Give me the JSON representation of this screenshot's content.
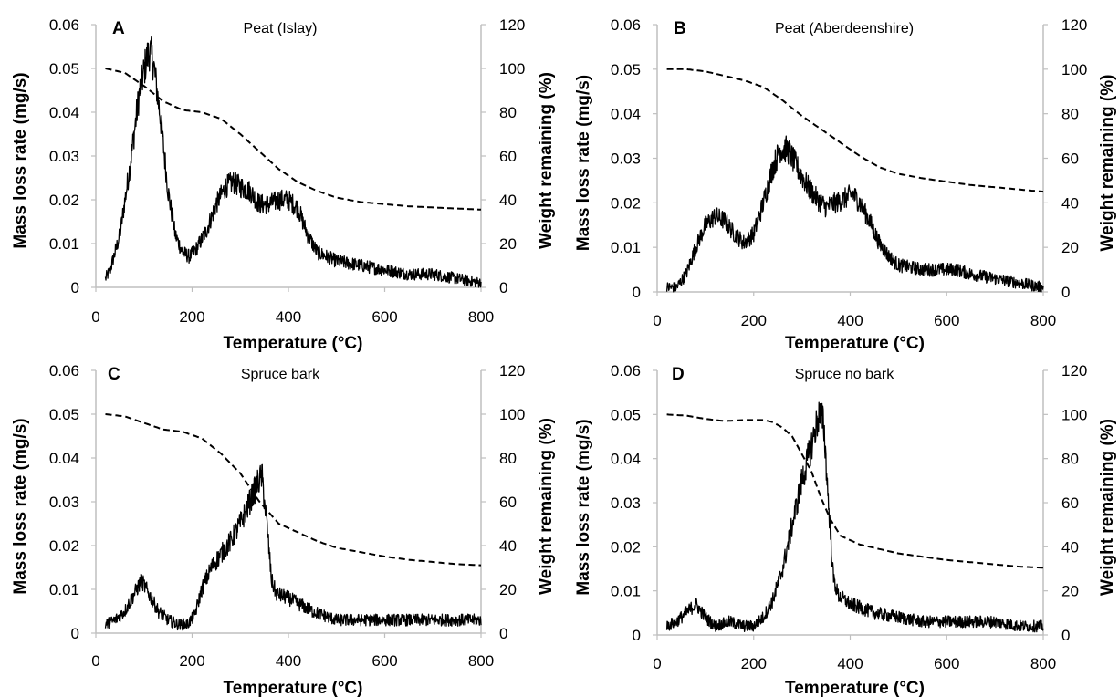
{
  "chart_data": [
    {
      "type": "line",
      "panel_label": "A",
      "title": "Peat (Islay)",
      "xlabel": "Temperature (°C)",
      "ylabel": "Mass loss rate (mg/s)",
      "y2label": "Weight remaining (%)",
      "xlim": [
        0,
        800
      ],
      "ylim": [
        0,
        0.06
      ],
      "y2lim": [
        0,
        120
      ],
      "x_ticks": [
        "0",
        "200",
        "400",
        "600",
        "800"
      ],
      "y_ticks": [
        "0",
        "0.01",
        "0.02",
        "0.03",
        "0.04",
        "0.05",
        "0.06"
      ],
      "y2_ticks": [
        "0",
        "20",
        "40",
        "60",
        "80",
        "100",
        "120"
      ],
      "grid": false,
      "series": [
        {
          "axis": "left",
          "style": "solid noisy",
          "x": [
            20,
            30,
            50,
            70,
            90,
            105,
            112,
            120,
            135,
            150,
            165,
            180,
            195,
            210,
            230,
            250,
            270,
            285,
            300,
            320,
            340,
            360,
            380,
            400,
            420,
            440,
            460,
            500,
            550,
            600,
            650,
            700,
            750,
            800
          ],
          "y": [
            0.002,
            0.004,
            0.012,
            0.027,
            0.044,
            0.052,
            0.054,
            0.051,
            0.038,
            0.022,
            0.012,
            0.008,
            0.007,
            0.009,
            0.013,
            0.019,
            0.023,
            0.024,
            0.023,
            0.022,
            0.019,
            0.019,
            0.02,
            0.02,
            0.018,
            0.012,
            0.008,
            0.006,
            0.005,
            0.004,
            0.003,
            0.003,
            0.002,
            0.001
          ]
        },
        {
          "axis": "right",
          "style": "dashed",
          "x": [
            20,
            60,
            100,
            140,
            180,
            220,
            260,
            300,
            340,
            380,
            420,
            460,
            500,
            550,
            600,
            650,
            700,
            750,
            800
          ],
          "y": [
            100,
            98,
            92,
            85,
            81,
            80,
            77,
            70,
            62,
            54,
            48,
            44,
            41,
            39,
            38,
            37,
            36.5,
            36,
            35.5
          ]
        }
      ]
    },
    {
      "type": "line",
      "panel_label": "B",
      "title": "Peat (Aberdeenshire)",
      "xlabel": "Temperature (°C)",
      "ylabel": "Mass loss rate (mg/s)",
      "y2label": "Weight remaining (%)",
      "xlim": [
        0,
        800
      ],
      "ylim": [
        0,
        0.06
      ],
      "y2lim": [
        0,
        120
      ],
      "x_ticks": [
        "0",
        "200",
        "400",
        "600",
        "800"
      ],
      "y_ticks": [
        "0",
        "0.01",
        "0.02",
        "0.03",
        "0.04",
        "0.05",
        "0.06"
      ],
      "y2_ticks": [
        "0",
        "20",
        "40",
        "60",
        "80",
        "100",
        "120"
      ],
      "grid": false,
      "series": [
        {
          "axis": "left",
          "style": "solid noisy",
          "x": [
            20,
            40,
            60,
            80,
            100,
            120,
            140,
            160,
            180,
            200,
            220,
            240,
            255,
            270,
            290,
            310,
            330,
            350,
            370,
            390,
            405,
            420,
            440,
            460,
            480,
            500,
            550,
            600,
            620,
            650,
            700,
            750,
            800
          ],
          "y": [
            0.001,
            0.001,
            0.004,
            0.01,
            0.015,
            0.017,
            0.016,
            0.013,
            0.011,
            0.013,
            0.02,
            0.028,
            0.032,
            0.032,
            0.028,
            0.024,
            0.021,
            0.019,
            0.02,
            0.021,
            0.022,
            0.02,
            0.016,
            0.011,
            0.008,
            0.006,
            0.005,
            0.005,
            0.005,
            0.004,
            0.003,
            0.002,
            0.001
          ]
        },
        {
          "axis": "right",
          "style": "dashed",
          "x": [
            20,
            60,
            100,
            140,
            180,
            220,
            260,
            300,
            340,
            380,
            420,
            460,
            500,
            550,
            600,
            650,
            700,
            750,
            800
          ],
          "y": [
            100,
            100,
            99,
            97,
            95,
            92,
            86,
            79,
            73,
            67,
            61,
            56,
            53,
            51,
            49.5,
            48,
            47,
            46,
            45
          ]
        }
      ]
    },
    {
      "type": "line",
      "panel_label": "C",
      "title": "Spruce bark",
      "xlabel": "Temperature (°C)",
      "ylabel": "Mass loss rate (mg/s)",
      "y2label": "Weight remaining (%)",
      "xlim": [
        0,
        800
      ],
      "ylim": [
        0,
        0.06
      ],
      "y2lim": [
        0,
        120
      ],
      "x_ticks": [
        "0",
        "200",
        "400",
        "600",
        "800"
      ],
      "y_ticks": [
        "0",
        "0.01",
        "0.02",
        "0.03",
        "0.04",
        "0.05",
        "0.06"
      ],
      "y2_ticks": [
        "0",
        "20",
        "40",
        "60",
        "80",
        "100",
        "120"
      ],
      "grid": false,
      "series": [
        {
          "axis": "left",
          "style": "solid noisy",
          "x": [
            20,
            40,
            60,
            80,
            95,
            110,
            130,
            150,
            170,
            190,
            205,
            220,
            240,
            260,
            280,
            300,
            320,
            335,
            345,
            355,
            365,
            375,
            400,
            450,
            500,
            550,
            600,
            650,
            700,
            750,
            800
          ],
          "y": [
            0.002,
            0.003,
            0.005,
            0.009,
            0.012,
            0.009,
            0.005,
            0.003,
            0.002,
            0.002,
            0.004,
            0.01,
            0.015,
            0.018,
            0.021,
            0.025,
            0.03,
            0.034,
            0.036,
            0.025,
            0.012,
            0.009,
            0.008,
            0.005,
            0.003,
            0.003,
            0.003,
            0.003,
            0.003,
            0.003,
            0.003
          ]
        },
        {
          "axis": "right",
          "style": "dashed",
          "x": [
            20,
            60,
            100,
            140,
            180,
            220,
            260,
            300,
            340,
            380,
            420,
            460,
            500,
            550,
            600,
            650,
            700,
            750,
            800
          ],
          "y": [
            100,
            99,
            96,
            93,
            92,
            89,
            82,
            73,
            60,
            50,
            46,
            42,
            39,
            37,
            35,
            33.5,
            32.5,
            31.5,
            31
          ]
        }
      ]
    },
    {
      "type": "line",
      "panel_label": "D",
      "title": "Spruce no bark",
      "xlabel": "Temperature (°C)",
      "ylabel": "Mass loss rate (mg/s)",
      "y2label": "Weight remaining (%)",
      "xlim": [
        0,
        800
      ],
      "ylim": [
        0,
        0.06
      ],
      "y2lim": [
        0,
        120
      ],
      "x_ticks": [
        "0",
        "200",
        "400",
        "600",
        "800"
      ],
      "y_ticks": [
        "0",
        "0.01",
        "0.02",
        "0.03",
        "0.04",
        "0.05",
        "0.06"
      ],
      "y2_ticks": [
        "0",
        "20",
        "40",
        "60",
        "80",
        "100",
        "120"
      ],
      "grid": false,
      "series": [
        {
          "axis": "left",
          "style": "solid noisy",
          "x": [
            20,
            40,
            60,
            80,
            100,
            120,
            150,
            180,
            200,
            220,
            240,
            260,
            280,
            300,
            320,
            335,
            345,
            355,
            365,
            375,
            400,
            450,
            500,
            550,
            600,
            650,
            700,
            750,
            800
          ],
          "y": [
            0.002,
            0.003,
            0.005,
            0.007,
            0.004,
            0.002,
            0.003,
            0.002,
            0.002,
            0.004,
            0.008,
            0.015,
            0.025,
            0.035,
            0.043,
            0.05,
            0.048,
            0.03,
            0.013,
            0.009,
            0.007,
            0.005,
            0.004,
            0.003,
            0.003,
            0.003,
            0.003,
            0.002,
            0.002
          ]
        },
        {
          "axis": "right",
          "style": "dashed",
          "x": [
            20,
            60,
            100,
            140,
            180,
            220,
            240,
            260,
            280,
            300,
            320,
            340,
            360,
            380,
            420,
            460,
            500,
            550,
            600,
            650,
            700,
            750,
            800
          ],
          "y": [
            100,
            99.5,
            98,
            97,
            97.5,
            97.5,
            96.5,
            94,
            90,
            82,
            74,
            62,
            52,
            45,
            41,
            39,
            37,
            35.5,
            34,
            33,
            32,
            31,
            30.5
          ]
        }
      ]
    }
  ]
}
